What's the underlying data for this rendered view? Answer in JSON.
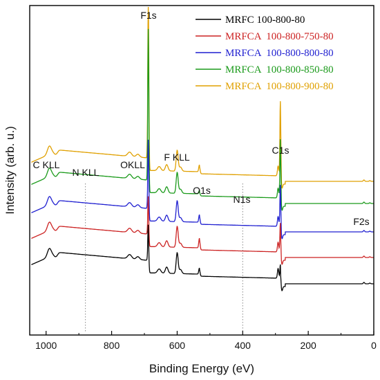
{
  "chart_data": {
    "type": "line",
    "xlabel": "Binding Energy (eV)",
    "ylabel": "Intensity (arb. u.)",
    "xlim": [
      1050,
      0
    ],
    "x_reversed": true,
    "x_ticks": [
      1000,
      800,
      600,
      400,
      200,
      0
    ],
    "grid": false,
    "legend_position": "top-right",
    "series": [
      {
        "name": "MRFC 100-800-80",
        "color": "#000000",
        "baseline": 0
      },
      {
        "name": "MRFCA  100-800-750-80",
        "color": "#cc2222",
        "baseline": 1
      },
      {
        "name": "MRFCA  100-800-800-80",
        "color": "#1f1fd0",
        "baseline": 2
      },
      {
        "name": "MRFCA  100-800-850-80",
        "color": "#1a9a1a",
        "baseline": 3
      },
      {
        "name": "MRFCA  100-800-900-80",
        "color": "#e0a000",
        "baseline": 4
      }
    ],
    "peaks": [
      {
        "label": "C KLL",
        "x": 990
      },
      {
        "label": "N KLL",
        "x": 880
      },
      {
        "label": "OKLL",
        "x": 745
      },
      {
        "label": "F1s",
        "x": 688
      },
      {
        "label": "F KLL",
        "x": 600
      },
      {
        "label": "O1s",
        "x": 532
      },
      {
        "label": "N1s",
        "x": 400
      },
      {
        "label": "C1s",
        "x": 285
      },
      {
        "label": "F2s",
        "x": 30
      }
    ],
    "reference_lines_x": [
      880,
      400
    ]
  }
}
